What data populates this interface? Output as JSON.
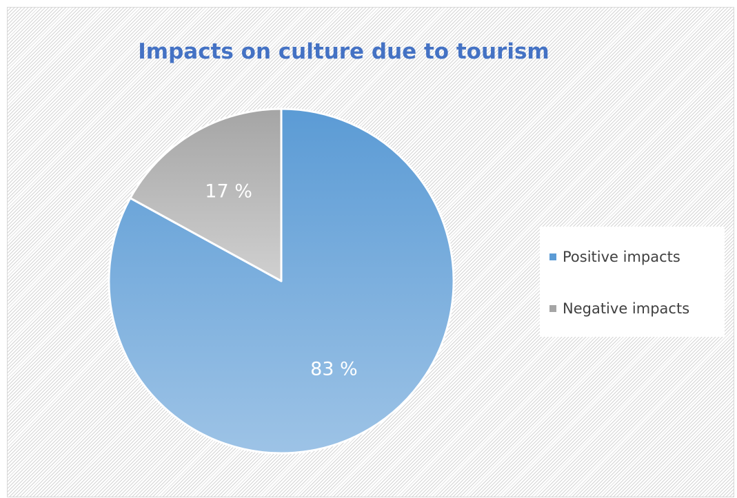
{
  "chart_data": {
    "type": "pie",
    "title": "Impacts on culture due to tourism",
    "categories": [
      "Positive impacts",
      "Negative impacts"
    ],
    "values": [
      83,
      17
    ],
    "data_labels": [
      "83 %",
      "17 %"
    ],
    "colors": [
      "#5b9bd5",
      "#a5a5a5"
    ],
    "legend": {
      "position": "right",
      "entries": [
        "Positive impacts",
        "Negative impacts"
      ]
    }
  }
}
